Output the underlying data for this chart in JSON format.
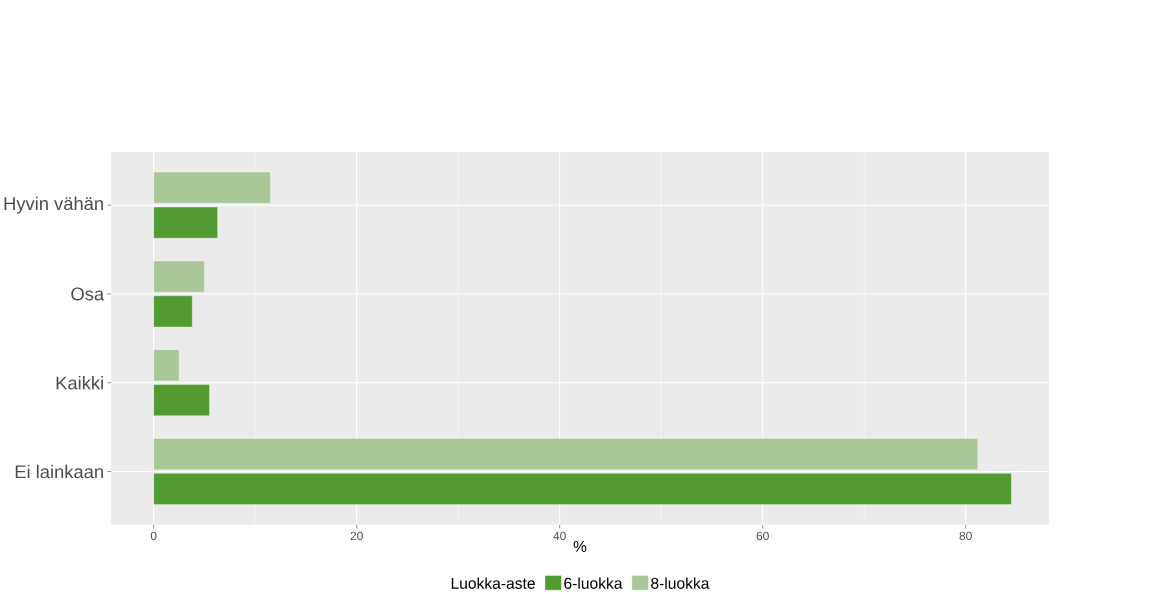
{
  "chart_data": {
    "type": "bar",
    "orientation": "horizontal",
    "categories": [
      "Hyvin vähän",
      "Osa",
      "Kaikki",
      "Ei lainkaan"
    ],
    "series": [
      {
        "name": "6-luokka",
        "color": "#519b30",
        "values": [
          6.3,
          3.8,
          5.5,
          84.5
        ]
      },
      {
        "name": "8-luokka",
        "color": "#a9c797",
        "values": [
          11.5,
          5.0,
          2.5,
          81.2
        ]
      }
    ],
    "xlabel": "%",
    "legend_title": "Luokka-aste",
    "legend": "bottom",
    "grid": true,
    "xlim": [
      -4.2,
      88.2
    ],
    "xticks": [
      0,
      20,
      40,
      60,
      80
    ]
  }
}
